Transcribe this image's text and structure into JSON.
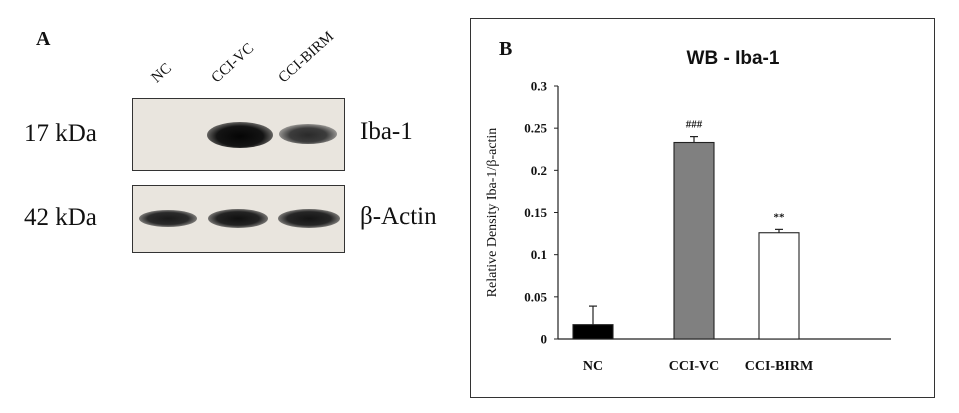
{
  "panel_a": {
    "letter": "A",
    "lanes": [
      "NC",
      "CCI-VC",
      "CCI-BIRM"
    ],
    "blots": [
      {
        "size": "17 kDa",
        "protein": "Iba-1",
        "band_intensity": [
          0.0,
          1.0,
          0.55
        ]
      },
      {
        "size": "42 kDa",
        "protein": "β-Actin",
        "band_intensity": [
          0.85,
          0.9,
          0.88
        ]
      }
    ]
  },
  "chart_data": {
    "type": "bar",
    "panel_letter": "B",
    "title": "WB - Iba-1",
    "ylabel": "Relative Density Iba-1/β-actin",
    "xlabel": "",
    "categories": [
      "NC",
      "CCI-VC",
      "CCI-BIRM"
    ],
    "values": [
      0.017,
      0.233,
      0.126
    ],
    "errors": [
      0.022,
      0.007,
      0.004
    ],
    "bar_colors": [
      "#000000",
      "#808080",
      "#ffffff"
    ],
    "annotations": [
      "",
      "###",
      "**"
    ],
    "ylim": [
      0,
      0.3
    ],
    "yticks": [
      "0",
      "0.05",
      "0.1",
      "0.15",
      "0.2",
      "0.25",
      "0.3"
    ],
    "grid": false,
    "legend": "none"
  }
}
